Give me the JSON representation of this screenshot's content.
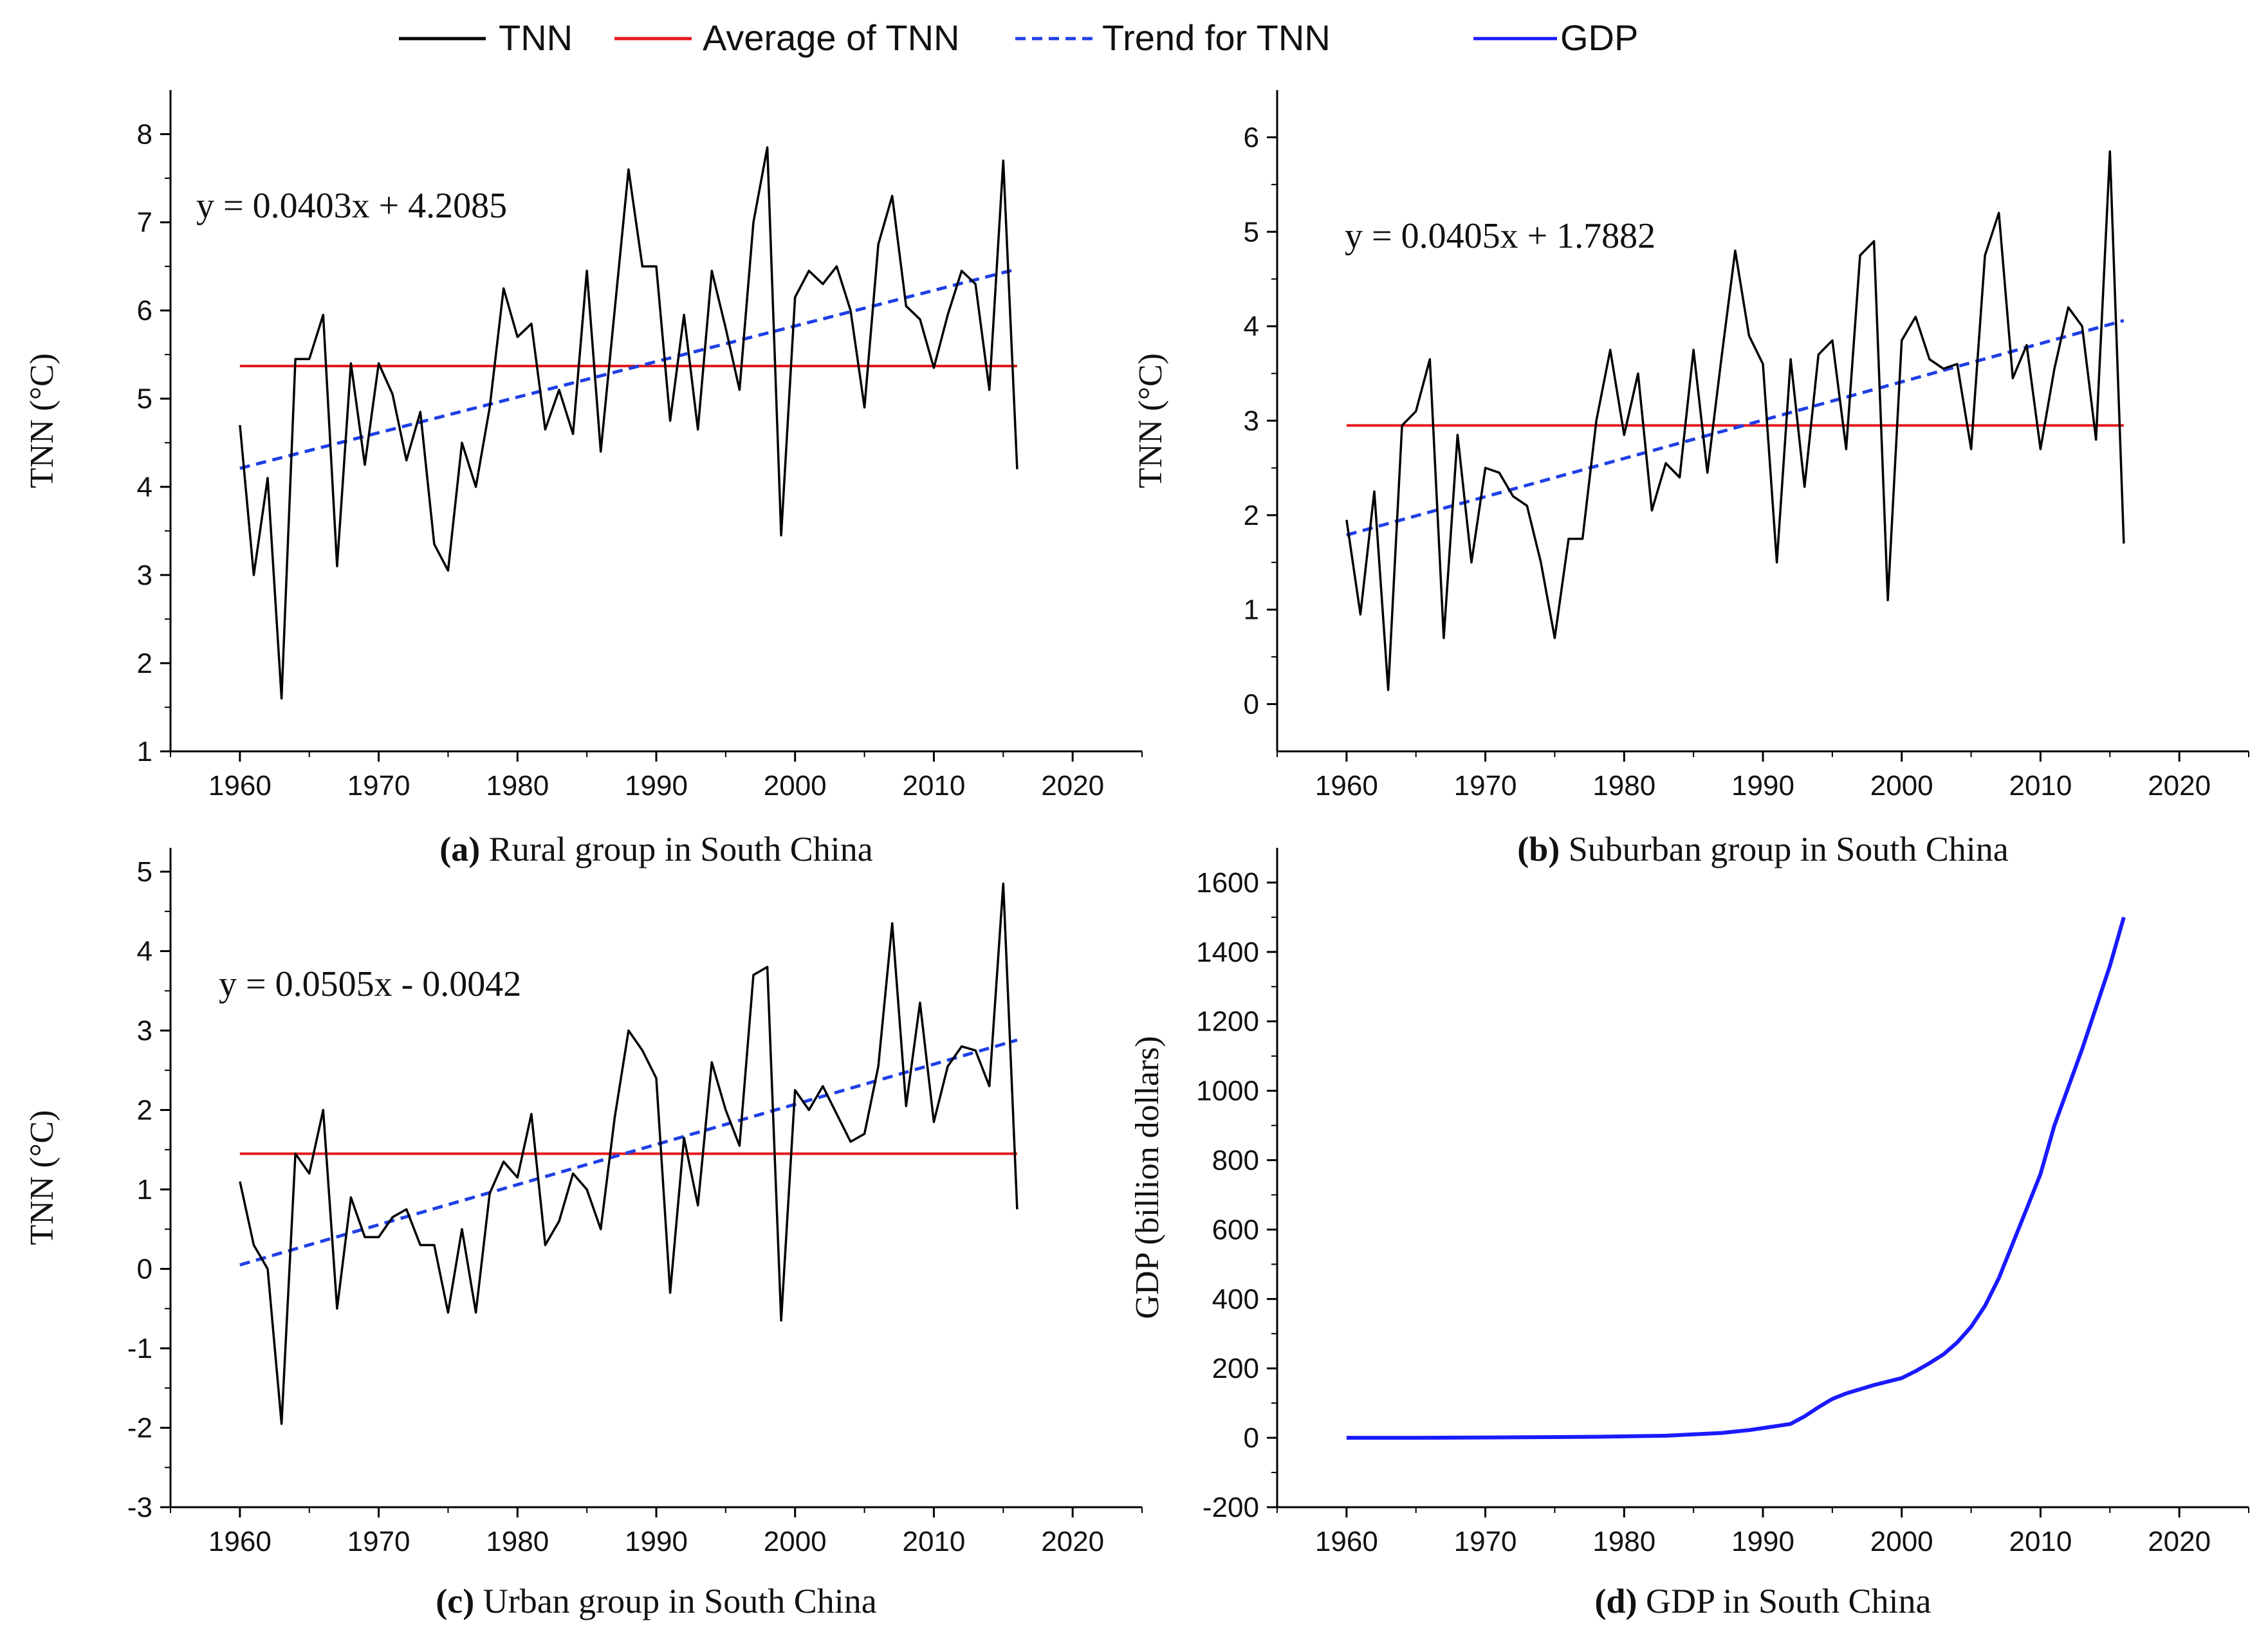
{
  "legend": {
    "items": [
      {
        "label": "TNN",
        "color": "#000000",
        "style": "solid"
      },
      {
        "label": "Average of TNN",
        "color": "#e41a1c",
        "style": "solid"
      },
      {
        "label": "Trend for TNN",
        "color": "#1f3fe6",
        "style": "dashed"
      },
      {
        "label": "GDP",
        "color": "#1a1aff",
        "style": "solid"
      }
    ]
  },
  "colors": {
    "tnn": "#000000",
    "average": "#e41a1c",
    "trend": "#1f3fe6",
    "gdp": "#1a1aff"
  },
  "chart_data": [
    {
      "id": "a",
      "type": "line",
      "caption_letter": "(a)",
      "caption_text": "Rural group in South China",
      "ylabel": "TNN (°C)",
      "xlabel": "",
      "xlim": [
        1955,
        2025
      ],
      "ylim": [
        1,
        8.5
      ],
      "xticks": [
        1960,
        1970,
        1980,
        1990,
        2000,
        2010,
        2020
      ],
      "yticks": [
        1,
        2,
        3,
        4,
        5,
        6,
        7,
        8
      ],
      "equation": "y = 0.0403x + 4.2085",
      "average": 5.37,
      "trend": {
        "x0": 1960,
        "y0": 4.21,
        "x1": 2016,
        "y1": 6.47
      },
      "x": [
        1960,
        1961,
        1962,
        1963,
        1964,
        1965,
        1966,
        1967,
        1968,
        1969,
        1970,
        1971,
        1972,
        1973,
        1974,
        1975,
        1976,
        1977,
        1978,
        1979,
        1980,
        1981,
        1982,
        1983,
        1984,
        1985,
        1986,
        1987,
        1988,
        1989,
        1990,
        1991,
        1992,
        1993,
        1994,
        1995,
        1996,
        1997,
        1998,
        1999,
        2000,
        2001,
        2002,
        2003,
        2004,
        2005,
        2006,
        2007,
        2008,
        2009,
        2010,
        2011,
        2012,
        2013,
        2014,
        2015,
        2016
      ],
      "series": [
        {
          "name": "TNN",
          "values": [
            4.7,
            3.0,
            4.1,
            1.6,
            5.45,
            5.45,
            5.95,
            3.1,
            5.4,
            4.25,
            5.4,
            5.05,
            4.3,
            4.85,
            3.35,
            3.05,
            4.5,
            4.0,
            4.9,
            6.25,
            5.7,
            5.85,
            4.65,
            5.1,
            4.6,
            6.45,
            4.4,
            6.0,
            7.6,
            6.5,
            6.5,
            4.75,
            5.95,
            4.65,
            6.45,
            5.8,
            5.1,
            7.0,
            7.85,
            3.45,
            6.15,
            6.45,
            6.3,
            6.5,
            6.0,
            4.9,
            6.75,
            7.3,
            6.05,
            5.9,
            5.35,
            5.95,
            6.45,
            6.3,
            5.1,
            7.7,
            4.2
          ]
        }
      ]
    },
    {
      "id": "b",
      "type": "line",
      "caption_letter": "(b)",
      "caption_text": "Suburban group in South China",
      "ylabel": "TNN (°C)",
      "xlabel": "",
      "xlim": [
        1955,
        2025
      ],
      "ylim": [
        -0.5,
        6.5
      ],
      "xticks": [
        1960,
        1970,
        1980,
        1990,
        2000,
        2010,
        2020
      ],
      "yticks": [
        0,
        1,
        2,
        3,
        4,
        5,
        6
      ],
      "equation": "y = 0.0405x + 1.7882",
      "average": 2.95,
      "trend": {
        "x0": 1960,
        "y0": 1.79,
        "x1": 2016,
        "y1": 4.06
      },
      "x": [
        1960,
        1961,
        1962,
        1963,
        1964,
        1965,
        1966,
        1967,
        1968,
        1969,
        1970,
        1971,
        1972,
        1973,
        1974,
        1975,
        1976,
        1977,
        1978,
        1979,
        1980,
        1981,
        1982,
        1983,
        1984,
        1985,
        1986,
        1987,
        1988,
        1989,
        1990,
        1991,
        1992,
        1993,
        1994,
        1995,
        1996,
        1997,
        1998,
        1999,
        2000,
        2001,
        2002,
        2003,
        2004,
        2005,
        2006,
        2007,
        2008,
        2009,
        2010,
        2011,
        2012,
        2013,
        2014,
        2015,
        2016
      ],
      "series": [
        {
          "name": "TNN",
          "values": [
            1.95,
            0.95,
            2.25,
            0.15,
            2.95,
            3.1,
            3.65,
            0.7,
            2.85,
            1.5,
            2.5,
            2.45,
            2.2,
            2.1,
            1.5,
            0.7,
            1.75,
            1.75,
            3.0,
            3.75,
            2.85,
            3.5,
            2.05,
            2.55,
            2.4,
            3.75,
            2.45,
            3.65,
            4.8,
            3.9,
            3.6,
            1.5,
            3.65,
            2.3,
            3.7,
            3.85,
            2.7,
            4.75,
            4.9,
            1.1,
            3.85,
            4.1,
            3.65,
            3.55,
            3.6,
            2.7,
            4.75,
            5.2,
            3.45,
            3.8,
            2.7,
            3.55,
            4.2,
            4.0,
            2.8,
            5.85,
            1.7
          ]
        }
      ]
    },
    {
      "id": "c",
      "type": "line",
      "caption_letter": "(c)",
      "caption_text": "Urban group in South China",
      "ylabel": "TNN (°C)",
      "xlabel": "",
      "xlim": [
        1955,
        2025
      ],
      "ylim": [
        -3,
        5.3
      ],
      "xticks": [
        1960,
        1970,
        1980,
        1990,
        2000,
        2010,
        2020
      ],
      "yticks": [
        -3,
        -2,
        -1,
        0,
        1,
        2,
        3,
        4,
        5
      ],
      "equation": "y = 0.0505x - 0.0042",
      "average": 1.45,
      "trend": {
        "x0": 1960,
        "y0": 0.05,
        "x1": 2016,
        "y1": 2.88
      },
      "x": [
        1960,
        1961,
        1962,
        1963,
        1964,
        1965,
        1966,
        1967,
        1968,
        1969,
        1970,
        1971,
        1972,
        1973,
        1974,
        1975,
        1976,
        1977,
        1978,
        1979,
        1980,
        1981,
        1982,
        1983,
        1984,
        1985,
        1986,
        1987,
        1988,
        1989,
        1990,
        1991,
        1992,
        1993,
        1994,
        1995,
        1996,
        1997,
        1998,
        1999,
        2000,
        2001,
        2002,
        2003,
        2004,
        2005,
        2006,
        2007,
        2008,
        2009,
        2010,
        2011,
        2012,
        2013,
        2014,
        2015,
        2016
      ],
      "series": [
        {
          "name": "TNN",
          "values": [
            1.1,
            0.3,
            0.0,
            -1.95,
            1.45,
            1.2,
            2.0,
            -0.5,
            0.9,
            0.4,
            0.4,
            0.65,
            0.75,
            0.3,
            0.3,
            -0.55,
            0.5,
            -0.55,
            0.95,
            1.35,
            1.15,
            1.95,
            0.3,
            0.6,
            1.2,
            1.0,
            0.5,
            1.9,
            3.0,
            2.75,
            2.4,
            -0.3,
            1.65,
            0.8,
            2.6,
            2.0,
            1.55,
            3.7,
            3.8,
            -0.65,
            2.25,
            2.0,
            2.3,
            1.95,
            1.6,
            1.7,
            2.55,
            4.35,
            2.05,
            3.35,
            1.85,
            2.55,
            2.8,
            2.75,
            2.3,
            4.85,
            0.75
          ]
        }
      ]
    },
    {
      "id": "d",
      "type": "line",
      "caption_letter": "(d)",
      "caption_text": "GDP in South China",
      "ylabel": "GDP (billion dollars)",
      "xlabel": "",
      "xlim": [
        1955,
        2025
      ],
      "ylim": [
        -200,
        1700
      ],
      "xticks": [
        1960,
        1970,
        1980,
        1990,
        2000,
        2010,
        2020
      ],
      "yticks": [
        -200,
        0,
        200,
        400,
        600,
        800,
        1000,
        1200,
        1400,
        1600
      ],
      "x": [
        1960,
        1965,
        1970,
        1975,
        1978,
        1980,
        1983,
        1985,
        1987,
        1988,
        1989,
        1990,
        1991,
        1992,
        1993,
        1994,
        1995,
        1996,
        1997,
        1998,
        1999,
        2000,
        2001,
        2002,
        2003,
        2004,
        2005,
        2006,
        2007,
        2008,
        2009,
        2010,
        2011,
        2012,
        2013,
        2014,
        2015,
        2016
      ],
      "series": [
        {
          "name": "GDP",
          "values": [
            0,
            0,
            1,
            2,
            3,
            4,
            6,
            10,
            14,
            18,
            22,
            28,
            34,
            40,
            62,
            88,
            112,
            128,
            140,
            152,
            162,
            172,
            192,
            215,
            240,
            275,
            320,
            380,
            460,
            560,
            660,
            760,
            900,
            1010,
            1120,
            1240,
            1360,
            1500
          ]
        }
      ]
    }
  ]
}
